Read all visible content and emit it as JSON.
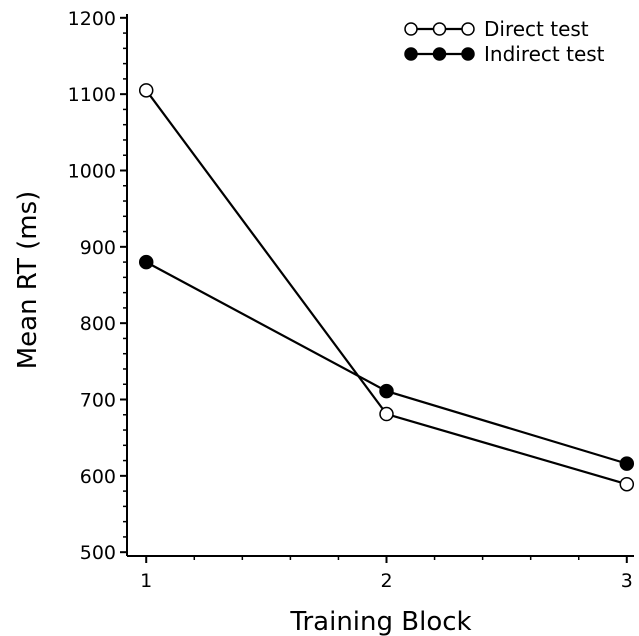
{
  "chart_data": {
    "type": "line",
    "title": "",
    "xlabel": "Training Block",
    "ylabel": "Mean RT (ms)",
    "x": [
      1,
      2,
      3
    ],
    "xlim": [
      0.92,
      3.03
    ],
    "ylim": [
      495,
      1205
    ],
    "yticks": [
      500,
      600,
      700,
      800,
      900,
      1000,
      1100,
      1200
    ],
    "grid": false,
    "legend_position": "top-right",
    "series": [
      {
        "name": "Direct test",
        "marker": "open-circle",
        "color": "#000000",
        "values": [
          1105,
          681,
          589
        ]
      },
      {
        "name": "Indirect test",
        "marker": "filled-circle",
        "color": "#000000",
        "values": [
          880,
          711,
          616
        ]
      }
    ]
  }
}
